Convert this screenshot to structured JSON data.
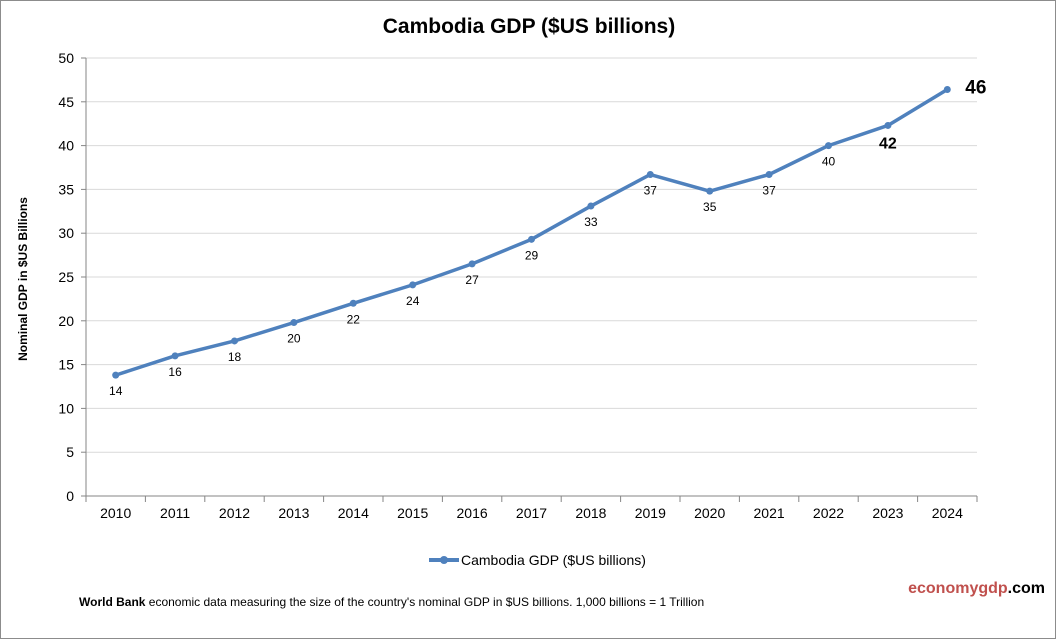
{
  "chart_data": {
    "type": "line",
    "title": "Cambodia GDP ($US billions)",
    "xlabel": "",
    "ylabel": "Nominal GDP in $US Billions",
    "categories": [
      "2010",
      "2011",
      "2012",
      "2013",
      "2014",
      "2015",
      "2016",
      "2017",
      "2018",
      "2019",
      "2020",
      "2021",
      "2022",
      "2023",
      "2024"
    ],
    "series": [
      {
        "name": "Cambodia GDP ($US billions)",
        "values": [
          13.8,
          16.0,
          17.7,
          19.8,
          22.0,
          24.1,
          26.5,
          29.3,
          33.1,
          36.7,
          34.8,
          36.7,
          40.0,
          42.3,
          46.4
        ],
        "labels": [
          "14",
          "16",
          "18",
          "20",
          "22",
          "24",
          "27",
          "29",
          "33",
          "37",
          "35",
          "37",
          "40",
          "42",
          "46"
        ],
        "color": "#4f81bd"
      }
    ],
    "ylim": [
      0,
      50
    ],
    "yticks": [
      "0",
      "5",
      "10",
      "15",
      "20",
      "25",
      "30",
      "35",
      "40",
      "45",
      "50"
    ],
    "grid": true,
    "legend": "bottom"
  },
  "footer": {
    "source_bold": "World Bank",
    "source_text": " economic data  measuring the size of the country's nominal GDP in $US billions. 1,000 billions = 1 Trillion",
    "brand_part1": "economygdp",
    "brand_part2": ".com"
  }
}
